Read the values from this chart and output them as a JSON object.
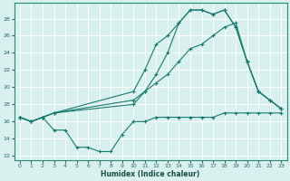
{
  "title": "",
  "xlabel": "Humidex (Indice chaleur)",
  "bg_color": "#d8f0ee",
  "grid_color": "#ffffff",
  "line_color": "#1a7a6e",
  "xlim": [
    -0.5,
    23.5
  ],
  "ylim": [
    11.5,
    29.8
  ],
  "yticks": [
    12,
    14,
    16,
    18,
    20,
    22,
    24,
    26,
    28
  ],
  "xticks": [
    0,
    1,
    2,
    3,
    4,
    5,
    6,
    7,
    8,
    9,
    10,
    11,
    12,
    13,
    14,
    15,
    16,
    17,
    18,
    19,
    20,
    21,
    22,
    23
  ],
  "series": [
    {
      "x": [
        0,
        1,
        2,
        3,
        4,
        5,
        6,
        7,
        8,
        9,
        10,
        11,
        12,
        13,
        14,
        15,
        16,
        17,
        18,
        19,
        20,
        21,
        22,
        23
      ],
      "y": [
        16.5,
        16.0,
        16.5,
        15.0,
        15.0,
        13.0,
        13.0,
        12.5,
        12.5,
        14.5,
        16.0,
        16.0,
        16.5,
        16.5,
        16.5,
        16.5,
        16.5,
        16.5,
        17.0,
        17.0,
        17.0,
        17.0,
        17.0,
        17.0
      ]
    },
    {
      "x": [
        0,
        1,
        2,
        3,
        10,
        11,
        12,
        13,
        14,
        15,
        16,
        17,
        18,
        19,
        20,
        21,
        22,
        23
      ],
      "y": [
        16.5,
        16.0,
        16.5,
        17.0,
        18.5,
        19.5,
        20.5,
        21.5,
        23.0,
        24.5,
        25.0,
        26.0,
        27.0,
        27.5,
        23.0,
        19.5,
        18.5,
        17.5
      ]
    },
    {
      "x": [
        0,
        1,
        2,
        3,
        10,
        11,
        12,
        13,
        14,
        15,
        16,
        17,
        18,
        19,
        20,
        21,
        22,
        23
      ],
      "y": [
        16.5,
        16.0,
        16.5,
        17.0,
        19.5,
        22.0,
        25.0,
        26.0,
        27.5,
        29.0,
        29.0,
        28.5,
        29.0,
        27.0,
        23.0,
        19.5,
        18.5,
        17.5
      ]
    },
    {
      "x": [
        0,
        1,
        2,
        3,
        10,
        11,
        12,
        13,
        14,
        15,
        16,
        17,
        18,
        19,
        20,
        21,
        22,
        23
      ],
      "y": [
        16.5,
        16.0,
        16.5,
        17.0,
        18.0,
        19.5,
        21.5,
        24.0,
        27.5,
        29.0,
        29.0,
        28.5,
        29.0,
        27.0,
        23.0,
        19.5,
        18.5,
        17.5
      ]
    }
  ]
}
